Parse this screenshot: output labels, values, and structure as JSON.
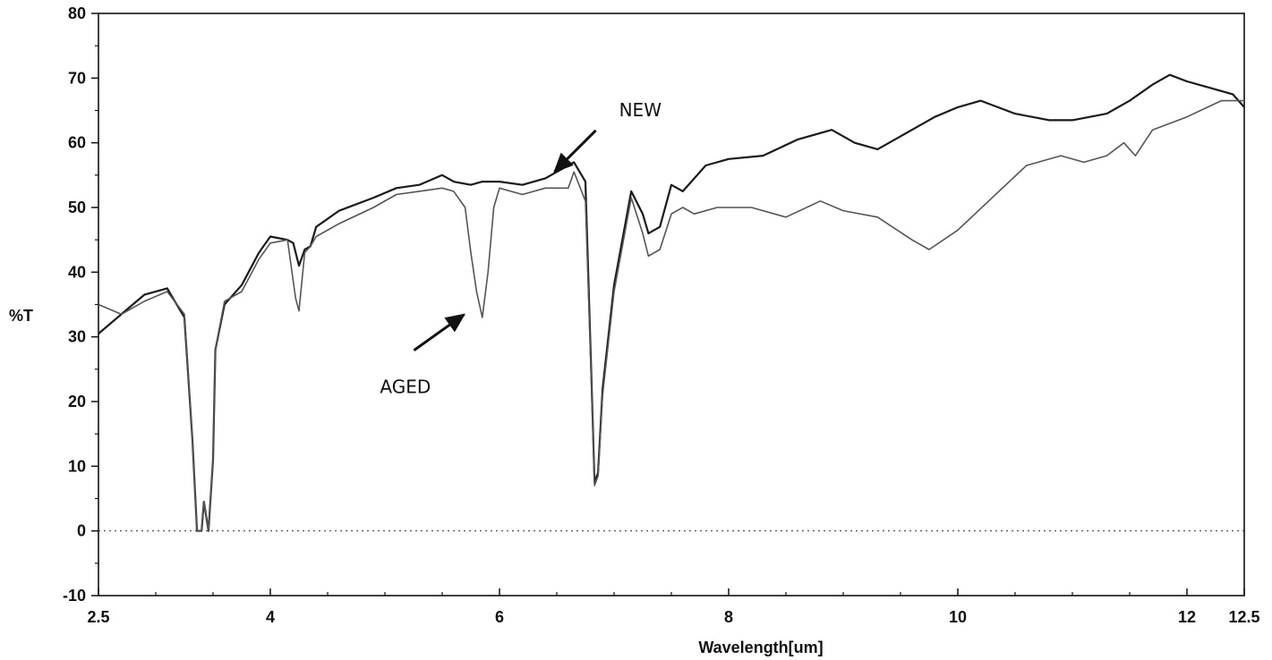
{
  "chart_data": {
    "type": "line",
    "title": "",
    "xlabel": "Wavelength[um]",
    "ylabel": "%T",
    "xlim": [
      2.5,
      12.5
    ],
    "ylim": [
      -10,
      80
    ],
    "x_ticks": [
      {
        "value": 2.5,
        "label": "2.5"
      },
      {
        "value": 4,
        "label": "4"
      },
      {
        "value": 6,
        "label": "6"
      },
      {
        "value": 8,
        "label": "8"
      },
      {
        "value": 10,
        "label": "10"
      },
      {
        "value": 12,
        "label": "12"
      },
      {
        "value": 12.5,
        "label": "12.5"
      }
    ],
    "y_ticks": [
      {
        "value": -10,
        "label": "-10"
      },
      {
        "value": 0,
        "label": "0"
      },
      {
        "value": 10,
        "label": "10"
      },
      {
        "value": 20,
        "label": "20"
      },
      {
        "value": 30,
        "label": "30"
      },
      {
        "value": 40,
        "label": "40"
      },
      {
        "value": 50,
        "label": "50"
      },
      {
        "value": 60,
        "label": "60"
      },
      {
        "value": 70,
        "label": "70"
      },
      {
        "value": 80,
        "label": "80"
      }
    ],
    "grid": false,
    "baseline": {
      "y": 0,
      "style": "dotted"
    },
    "series": [
      {
        "name": "NEW",
        "color": "#1a1a1a",
        "x": [
          2.5,
          2.7,
          2.9,
          3.1,
          3.25,
          3.32,
          3.36,
          3.4,
          3.42,
          3.46,
          3.5,
          3.52,
          3.6,
          3.75,
          3.9,
          4.0,
          4.15,
          4.2,
          4.25,
          4.3,
          4.35,
          4.4,
          4.6,
          4.9,
          5.1,
          5.3,
          5.5,
          5.6,
          5.75,
          5.85,
          6.0,
          6.2,
          6.4,
          6.6,
          6.65,
          6.75,
          6.8,
          6.83,
          6.86,
          6.9,
          7.0,
          7.15,
          7.25,
          7.3,
          7.4,
          7.5,
          7.6,
          7.8,
          8.0,
          8.3,
          8.6,
          8.9,
          9.1,
          9.3,
          9.5,
          9.8,
          10.0,
          10.2,
          10.5,
          10.8,
          11.0,
          11.3,
          11.5,
          11.7,
          11.85,
          12.0,
          12.2,
          12.4,
          12.5
        ],
        "y": [
          30.5,
          33.5,
          36.5,
          37.5,
          33,
          14,
          0,
          0,
          4.5,
          0,
          11,
          28,
          35,
          38,
          43,
          45.5,
          45,
          44.5,
          41,
          43.5,
          44,
          47,
          49.5,
          51.5,
          53,
          53.5,
          55,
          54,
          53.5,
          54,
          54,
          53.5,
          54.5,
          56.5,
          57,
          54,
          25,
          7.5,
          9,
          22,
          38,
          52.5,
          49,
          46,
          47,
          53.5,
          52.5,
          56.5,
          57.5,
          58,
          60.5,
          62,
          60,
          59,
          61,
          64,
          65.5,
          66.5,
          64.5,
          63.5,
          63.5,
          64.5,
          66.5,
          69,
          70.5,
          69.5,
          68.5,
          67.5,
          65.5
        ]
      },
      {
        "name": "AGED",
        "color": "#555555",
        "x": [
          2.5,
          2.7,
          2.9,
          3.1,
          3.25,
          3.32,
          3.36,
          3.4,
          3.42,
          3.46,
          3.5,
          3.52,
          3.6,
          3.75,
          3.9,
          4.0,
          4.15,
          4.22,
          4.25,
          4.3,
          4.35,
          4.4,
          4.6,
          4.9,
          5.1,
          5.3,
          5.5,
          5.6,
          5.7,
          5.75,
          5.8,
          5.85,
          5.9,
          5.95,
          6.0,
          6.2,
          6.4,
          6.6,
          6.65,
          6.75,
          6.8,
          6.83,
          6.86,
          6.9,
          7.0,
          7.15,
          7.25,
          7.3,
          7.4,
          7.5,
          7.6,
          7.7,
          7.9,
          8.2,
          8.5,
          8.8,
          9.0,
          9.3,
          9.6,
          9.75,
          10.0,
          10.3,
          10.6,
          10.9,
          11.1,
          11.3,
          11.45,
          11.55,
          11.7,
          12.0,
          12.3,
          12.5
        ],
        "y": [
          35,
          33.5,
          35.5,
          37,
          33.5,
          14,
          0,
          0,
          4.5,
          0,
          11,
          28,
          35.5,
          37,
          42,
          44.5,
          45,
          36,
          34,
          43,
          44,
          45.5,
          47.5,
          50,
          52,
          52.5,
          53,
          52.5,
          50,
          43,
          37,
          33,
          40,
          50,
          53,
          52,
          53,
          53,
          55.5,
          51,
          24,
          7,
          8.5,
          21,
          37,
          51.5,
          46,
          42.5,
          43.5,
          49,
          50,
          49,
          50,
          50,
          48.5,
          51,
          49.5,
          48.5,
          45,
          43.5,
          46.5,
          51.5,
          56.5,
          58,
          57,
          58,
          60,
          58,
          62,
          64,
          66.5,
          66.5
        ]
      }
    ],
    "annotations": [
      {
        "text": "NEW",
        "target_series": "NEW",
        "x": 6.45,
        "y": 55
      },
      {
        "text": "AGED",
        "target_series": "AGED",
        "x": 5.8,
        "y": 34
      }
    ]
  }
}
